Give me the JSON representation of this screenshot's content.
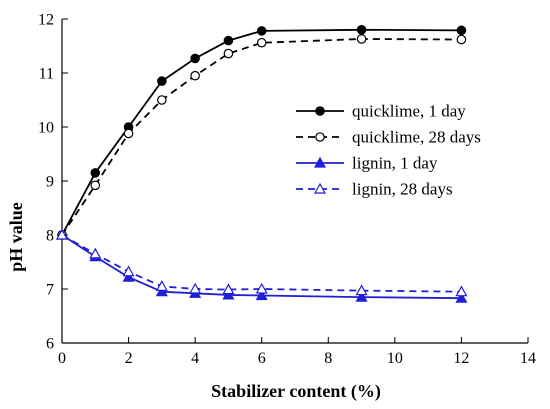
{
  "chart_data": {
    "type": "line",
    "xlabel": "Stabilizer content (%)",
    "ylabel": "pH value",
    "xlim": [
      0,
      14
    ],
    "ylim": [
      6,
      12
    ],
    "xticks": [
      0,
      2,
      4,
      6,
      8,
      10,
      12,
      14
    ],
    "yticks": [
      6,
      7,
      8,
      9,
      10,
      11,
      12
    ],
    "grid": false,
    "legend_position": "right",
    "series": [
      {
        "name": "quicklime, 1 day",
        "color": "#000000",
        "line_style": "solid",
        "marker": "filled-circle",
        "x": [
          0,
          1,
          2,
          3,
          4,
          5,
          6,
          9,
          12
        ],
        "y": [
          8.0,
          9.15,
          10.0,
          10.85,
          11.27,
          11.6,
          11.78,
          11.8,
          11.79
        ]
      },
      {
        "name": "quicklime, 28 days",
        "color": "#000000",
        "line_style": "dashed",
        "marker": "open-circle",
        "x": [
          0,
          1,
          2,
          3,
          4,
          5,
          6,
          9,
          12
        ],
        "y": [
          8.0,
          8.92,
          9.88,
          10.5,
          10.95,
          11.36,
          11.56,
          11.63,
          11.62
        ]
      },
      {
        "name": "lignin, 1 day",
        "color": "#1f1fd6",
        "line_style": "solid",
        "marker": "filled-triangle",
        "x": [
          0,
          1,
          2,
          3,
          4,
          5,
          6,
          9,
          12
        ],
        "y": [
          8.0,
          7.6,
          7.22,
          6.95,
          6.92,
          6.89,
          6.88,
          6.85,
          6.83
        ]
      },
      {
        "name": "lignin, 28 days",
        "color": "#1f1fd6",
        "line_style": "dashed",
        "marker": "open-triangle",
        "x": [
          0,
          1,
          2,
          3,
          4,
          5,
          6,
          9,
          12
        ],
        "y": [
          8.0,
          7.65,
          7.32,
          7.05,
          7.0,
          6.99,
          7.0,
          6.97,
          6.95
        ]
      }
    ]
  }
}
